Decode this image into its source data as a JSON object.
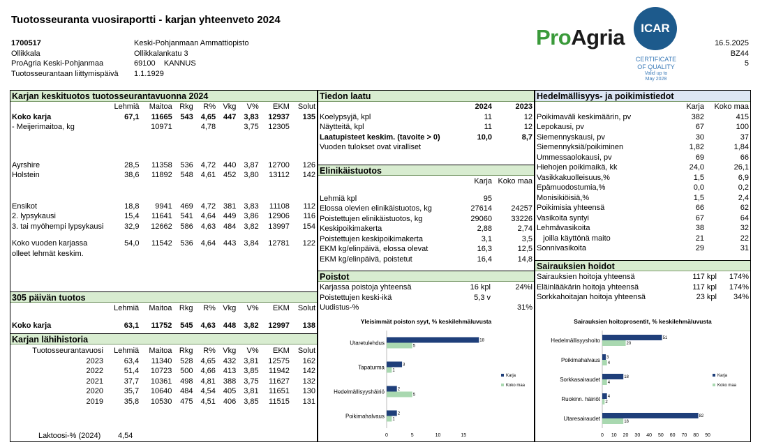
{
  "title": "Tuotosseuranta vuosiraportti - karjan yhteenveto 2024",
  "header": {
    "left": [
      "1700517",
      "Ollikkala",
      "ProAgria Keski-Pohjanmaa",
      "Tuotosseurantaan liittymispäivä"
    ],
    "mid": [
      "Keski-Pohjanmaan Ammattiopisto",
      "Ollikkalankatu 3",
      "69100    KANNUS",
      "1.1.1929"
    ],
    "right": [
      "16.5.2025",
      "BZ44",
      "5"
    ]
  },
  "logo": {
    "pro": "Pro",
    "agria": "Agria"
  },
  "icar": {
    "badge": "ICAR",
    "cert1": "CERTIFICATE",
    "cert2": "OF QUALITY",
    "valid1": "Valid up to",
    "valid2": "May 2028"
  },
  "karja": {
    "title": "Karjan keskituotos tuotosseurantavuonna 2024",
    "cols": [
      "Lehmiä",
      "Maitoa",
      "Rkg",
      "R%",
      "Vkg",
      "V%",
      "EKM",
      "Solut"
    ],
    "rows": [
      {
        "label": "Koko karja",
        "v": [
          "67,1",
          "11665",
          "543",
          "4,65",
          "447",
          "3,83",
          "12937",
          "135"
        ],
        "bold": true
      },
      {
        "label": "- Meijerimaitoa, kg",
        "v": [
          "",
          "10971",
          "",
          "4,78",
          "",
          "3,75",
          "12305",
          ""
        ]
      },
      {
        "label": "Ayrshire",
        "v": [
          "28,5",
          "11358",
          "536",
          "4,72",
          "440",
          "3,87",
          "12700",
          "126"
        ]
      },
      {
        "label": "Holstein",
        "v": [
          "38,6",
          "11892",
          "548",
          "4,61",
          "452",
          "3,80",
          "13112",
          "142"
        ]
      },
      {
        "label": "Ensikot",
        "v": [
          "18,8",
          "9941",
          "469",
          "4,72",
          "381",
          "3,83",
          "11108",
          "112"
        ]
      },
      {
        "label": "2. lypsykausi",
        "v": [
          "15,4",
          "11641",
          "541",
          "4,64",
          "449",
          "3,86",
          "12906",
          "116"
        ]
      },
      {
        "label": "3. tai myöhempi lypsykausi",
        "v": [
          "32,9",
          "12662",
          "586",
          "4,63",
          "484",
          "3,82",
          "13997",
          "154"
        ]
      },
      {
        "label": "Koko vuoden karjassa",
        "v": [
          "54,0",
          "11542",
          "536",
          "4,64",
          "443",
          "3,84",
          "12781",
          "122"
        ]
      },
      {
        "label": "olleet lehmät keskim.",
        "v": [
          "",
          "",
          "",
          "",
          "",
          "",
          "",
          ""
        ]
      }
    ]
  },
  "p305": {
    "title": "305 päivän tuotos",
    "cols": [
      "Lehmiä",
      "Maitoa",
      "Rkg",
      "R%",
      "Vkg",
      "V%",
      "EKM",
      "Solut"
    ],
    "row": {
      "label": "Koko karja",
      "v": [
        "63,1",
        "11752",
        "545",
        "4,63",
        "448",
        "3,82",
        "12997",
        "138"
      ]
    }
  },
  "hist": {
    "title": "Karjan lähihistoria",
    "col0": "Tuotosseurantavuosi",
    "cols": [
      "Lehmiä",
      "Maitoa",
      "Rkg",
      "R%",
      "Vkg",
      "V%",
      "EKM",
      "Solut"
    ],
    "rows": [
      {
        "y": "2023",
        "v": [
          "63,4",
          "11340",
          "528",
          "4,65",
          "432",
          "3,81",
          "12575",
          "162"
        ]
      },
      {
        "y": "2022",
        "v": [
          "51,4",
          "10723",
          "500",
          "4,66",
          "413",
          "3,85",
          "11942",
          "142"
        ]
      },
      {
        "y": "2021",
        "v": [
          "37,7",
          "10361",
          "498",
          "4,81",
          "388",
          "3,75",
          "11627",
          "132"
        ]
      },
      {
        "y": "2020",
        "v": [
          "35,7",
          "10640",
          "484",
          "4,54",
          "405",
          "3,81",
          "11651",
          "130"
        ]
      },
      {
        "y": "2019",
        "v": [
          "35,8",
          "10530",
          "475",
          "4,51",
          "406",
          "3,85",
          "11515",
          "131"
        ]
      }
    ],
    "lakt_label": "Laktoosi-% (2024)",
    "lakt_val": "4,54"
  },
  "laatu": {
    "title": "Tiedon laatu",
    "c1": "2024",
    "c2": "2023",
    "rows": [
      {
        "l": "Koelypsyjä, kpl",
        "a": "11",
        "b": "12"
      },
      {
        "l": "Näytteitä, kpl",
        "a": "11",
        "b": "12"
      },
      {
        "l": "Laatupisteet keskim. (tavoite > 0)",
        "a": "10,0",
        "b": "8,7",
        "bold": true
      },
      {
        "l": "Vuoden tulokset ovat viralliset",
        "a": "",
        "b": ""
      }
    ]
  },
  "elin": {
    "title": "Elinikäistuotos",
    "c1": "Karja",
    "c2": "Koko maa",
    "rows": [
      {
        "l": "Lehmiä kpl",
        "a": "95",
        "b": ""
      },
      {
        "l": "Elossa olevien elinikäistuotos, kg",
        "a": "27614",
        "b": "24257"
      },
      {
        "l": "Poistettujen elinikäistuotos, kg",
        "a": "29060",
        "b": "33226"
      },
      {
        "l": "Keskipoikimakerta",
        "a": "2,88",
        "b": "2,74"
      },
      {
        "l": "Poistettujen keskipoikimakerta",
        "a": "3,1",
        "b": "3,5"
      },
      {
        "l": "EKM kg/elinpäivä, elossa olevat",
        "a": "16,3",
        "b": "12,5"
      },
      {
        "l": "EKM kg/elinpäivä, poistetut",
        "a": "16,4",
        "b": "14,8"
      }
    ]
  },
  "poistot": {
    "title": "Poistot",
    "rows": [
      {
        "l": "Karjassa poistoja yhteensä",
        "a": "16 kpl",
        "b": "24%l"
      },
      {
        "l": "Poistettujen keski-ikä",
        "a": "5,3 v",
        "b": ""
      },
      {
        "l": "Uudistus-%",
        "a": "",
        "b": "31%"
      }
    ]
  },
  "hedel": {
    "title": "Hedelmällisyys- ja poikimistiedot",
    "c1": "Karja",
    "c2": "Koko maa",
    "rows": [
      {
        "l": "Poikimaväli keskimäärin, pv",
        "a": "382",
        "b": "415"
      },
      {
        "l": "Lepokausi, pv",
        "a": "67",
        "b": "100"
      },
      {
        "l": "Siemennyskausi, pv",
        "a": "30",
        "b": "37"
      },
      {
        "l": "Siemennyksiä/poikiminen",
        "a": "1,82",
        "b": "1,84"
      },
      {
        "l": "Ummessaolokausi, pv",
        "a": "69",
        "b": "66"
      },
      {
        "l": "Hiehojen poikimaikä, kk",
        "a": "24,0",
        "b": "26,1"
      },
      {
        "l": "Vasikkakuolleisuus,%",
        "a": "1,5",
        "b": "6,9"
      },
      {
        "l": "Epämuodostumia,%",
        "a": "0,0",
        "b": "0,2"
      },
      {
        "l": "Monisikiöisiä,%",
        "a": "1,5",
        "b": "2,4"
      },
      {
        "l": "Poikimisia yhteensä",
        "a": "66",
        "b": "62"
      },
      {
        "l": "Vasikoita syntyi",
        "a": "67",
        "b": "64"
      },
      {
        "l": "Lehmävasikoita",
        "a": "38",
        "b": "32"
      },
      {
        "l": "   joilla käyttönä maito",
        "a": "21",
        "b": "22"
      },
      {
        "l": "Sonnivasikoita",
        "a": "29",
        "b": "31"
      }
    ]
  },
  "sair": {
    "title": "Sairauksien hoidot",
    "rows": [
      {
        "l": "Sairauksien hoitoja yhteensä",
        "a": "117 kpl",
        "b": "174%"
      },
      {
        "l": "Eläinlääkärin hoitoja yhteensä",
        "a": "117 kpl",
        "b": "174%"
      },
      {
        "l": "Sorkkahoitajan hoitoja yhteensä",
        "a": "23 kpl",
        "b": "34%"
      }
    ]
  },
  "colors": {
    "karja": "#1f3f7a",
    "kokomaa": "#a9d8b0",
    "secGreen": "#d8ecd0",
    "secBlue": "#dce6f4"
  },
  "chart_data": [
    {
      "type": "bar",
      "orientation": "horizontal",
      "title": "Yleisimmät poiston syyt, % keskilehmäluvusta",
      "categories": [
        "Utaretulehdus",
        "Tapaturma",
        "Hedelmällisyyshäiriö",
        "Poikimahalvaus"
      ],
      "series": [
        {
          "name": "Karja",
          "values": [
            18,
            3,
            2,
            2
          ]
        },
        {
          "name": "Koko maa",
          "values": [
            5,
            1,
            5,
            1
          ]
        }
      ],
      "xlim": [
        0,
        20
      ],
      "xticks": [
        "0",
        "5",
        "10",
        "15"
      ],
      "legend": "right"
    },
    {
      "type": "bar",
      "orientation": "horizontal",
      "title": "Sairauksien hoitoprosentit, % keskilehmäluvusta",
      "categories": [
        "Hedelmällisyyshoito",
        "Poikimahalvaus",
        "Sorkkasairaudet",
        "Ruokinn. häiriöt",
        "Utaresairaudet"
      ],
      "series": [
        {
          "name": "Karja",
          "values": [
            51,
            3,
            18,
            4,
            82
          ]
        },
        {
          "name": "Koko maa",
          "values": [
            20,
            4,
            4,
            2,
            18
          ]
        }
      ],
      "xlim": [
        0,
        90
      ],
      "xticks": [
        "0",
        "10",
        "20",
        "30",
        "40",
        "50",
        "60",
        "70",
        "80",
        "90"
      ],
      "legend": "right"
    }
  ]
}
